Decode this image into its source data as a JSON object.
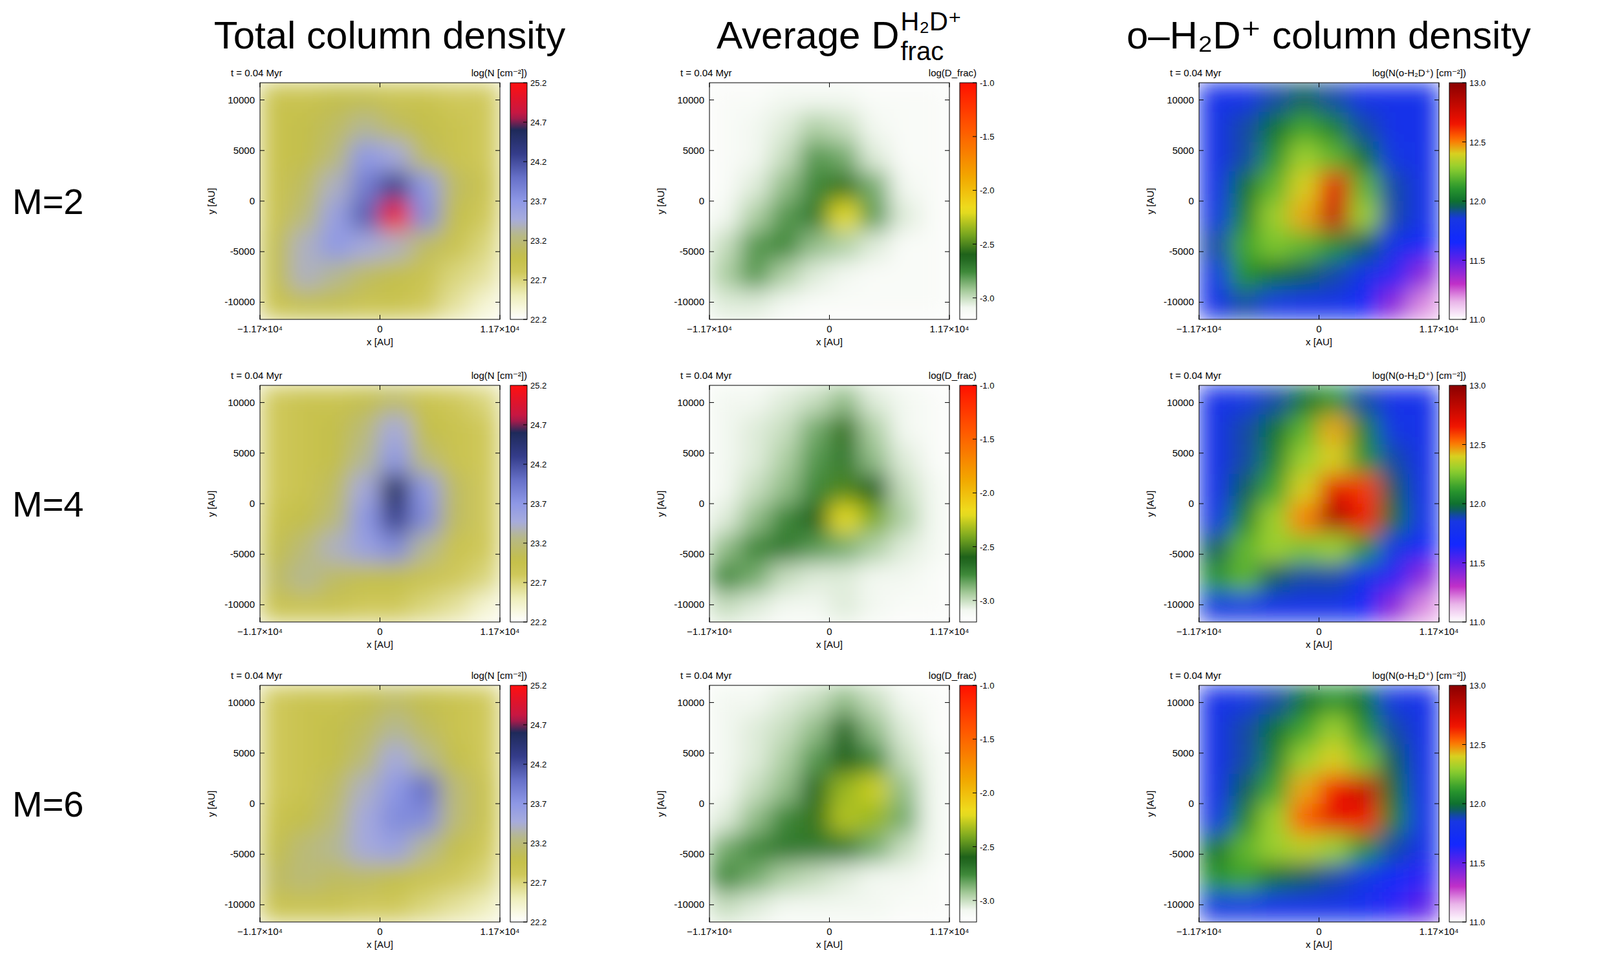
{
  "column_titles": [
    "Total column density",
    {
      "text": "Average D",
      "sup": "H₂D⁺",
      "sub": "frac"
    },
    "o–H₂D⁺ column density"
  ],
  "row_labels": [
    "M=2",
    "M=4",
    "M=6"
  ],
  "chart_data": [
    {
      "type": "heatmap",
      "title": "t = 0.04 Myr",
      "colorbar_label": "log(N [cm⁻²])",
      "xlabel": "x [AU]",
      "ylabel": "y [AU]",
      "xlim": [
        -11700,
        11700
      ],
      "ylim": [
        -11700,
        11700
      ],
      "xticks": [
        {
          "value": -11700,
          "label": "−1.17×10⁴"
        },
        0,
        {
          "value": 11700,
          "label": "1.17×10⁴"
        }
      ],
      "yticks": [
        -10000,
        -5000,
        0,
        5000,
        10000
      ],
      "zlim": [
        22.2,
        25.2
      ],
      "zticks": [
        22.2,
        22.7,
        23.2,
        23.7,
        24.2,
        24.7,
        25.2
      ],
      "z": [
        [
          22.9,
          22.9,
          23.0,
          23.0,
          22.9,
          22.9,
          22.8,
          22.8
        ],
        [
          22.9,
          23.0,
          23.1,
          23.3,
          23.1,
          23.0,
          22.9,
          22.8
        ],
        [
          22.9,
          23.0,
          23.2,
          23.7,
          23.5,
          23.1,
          22.9,
          22.8
        ],
        [
          22.9,
          23.1,
          23.4,
          23.9,
          24.3,
          23.7,
          23.1,
          22.9
        ],
        [
          22.9,
          23.2,
          23.6,
          24.1,
          25.1,
          23.8,
          23.0,
          22.8
        ],
        [
          23.0,
          23.4,
          23.7,
          23.5,
          23.4,
          23.1,
          22.9,
          22.7
        ],
        [
          23.0,
          23.4,
          23.3,
          23.1,
          23.0,
          22.9,
          22.7,
          22.6
        ],
        [
          22.9,
          23.0,
          23.0,
          22.9,
          22.9,
          22.8,
          22.6,
          22.4
        ]
      ]
    },
    {
      "type": "heatmap",
      "title": "t = 0.04 Myr",
      "colorbar_label": "log(D_frac)",
      "xlabel": "x [AU]",
      "ylabel": "y [AU]",
      "xlim": [
        -11700,
        11700
      ],
      "ylim": [
        -11700,
        11700
      ],
      "xticks": [
        {
          "value": -11700,
          "label": "−1.17×10⁴"
        },
        0,
        {
          "value": 11700,
          "label": "1.17×10⁴"
        }
      ],
      "yticks": [
        -10000,
        -5000,
        0,
        5000,
        10000
      ],
      "zlim": [
        -3.2,
        -1.0
      ],
      "zticks": [
        {
          "value": -3,
          "label": "-3.0"
        },
        -2.5,
        {
          "value": -2,
          "label": "-2.0"
        },
        -1.5,
        {
          "value": -1,
          "label": "-1.0"
        }
      ],
      "z": [
        [
          -3.15,
          -3.15,
          -3.1,
          -3.1,
          -3.1,
          -3.15,
          -3.15,
          -3.15
        ],
        [
          -3.15,
          -3.1,
          -3.05,
          -2.95,
          -3.0,
          -3.1,
          -3.15,
          -3.15
        ],
        [
          -3.15,
          -3.1,
          -3.0,
          -2.8,
          -2.85,
          -3.05,
          -3.15,
          -3.15
        ],
        [
          -3.15,
          -3.05,
          -2.9,
          -2.75,
          -2.55,
          -2.85,
          -3.1,
          -3.15
        ],
        [
          -3.1,
          -2.95,
          -2.8,
          -2.7,
          -2.2,
          -2.8,
          -3.05,
          -3.15
        ],
        [
          -3.0,
          -2.8,
          -2.75,
          -2.9,
          -2.95,
          -3.05,
          -3.15,
          -3.15
        ],
        [
          -2.95,
          -2.8,
          -2.95,
          -3.05,
          -3.1,
          -3.15,
          -3.15,
          -3.15
        ],
        [
          -3.05,
          -3.05,
          -3.1,
          -3.15,
          -3.15,
          -3.15,
          -3.15,
          -3.15
        ]
      ]
    },
    {
      "type": "heatmap",
      "title": "t = 0.04 Myr",
      "colorbar_label": "log(N(o-H₂D⁺) [cm⁻²])",
      "xlabel": "x [AU]",
      "ylabel": "y [AU]",
      "xlim": [
        -11700,
        11700
      ],
      "ylim": [
        -11700,
        11700
      ],
      "xticks": [
        {
          "value": -11700,
          "label": "−1.17×10⁴"
        },
        0,
        {
          "value": 11700,
          "label": "1.17×10⁴"
        }
      ],
      "yticks": [
        -10000,
        -5000,
        0,
        5000,
        10000
      ],
      "zlim": [
        11,
        13
      ],
      "zticks": [
        {
          "value": 11,
          "label": "11.0"
        },
        11.5,
        {
          "value": 12,
          "label": "12.0"
        },
        12.5,
        {
          "value": 13,
          "label": "13.0"
        }
      ],
      "z": [
        [
          11.8,
          11.8,
          11.9,
          11.95,
          11.9,
          11.8,
          11.8,
          11.8
        ],
        [
          11.8,
          11.9,
          12.0,
          12.15,
          12.05,
          11.9,
          11.8,
          11.8
        ],
        [
          11.8,
          11.9,
          12.1,
          12.3,
          12.2,
          12.0,
          11.85,
          11.8
        ],
        [
          11.8,
          12.0,
          12.2,
          12.4,
          12.7,
          12.2,
          11.9,
          11.8
        ],
        [
          11.85,
          12.05,
          12.3,
          12.45,
          12.8,
          12.3,
          11.9,
          11.8
        ],
        [
          11.9,
          12.15,
          12.25,
          12.2,
          12.1,
          11.95,
          11.8,
          11.7
        ],
        [
          11.85,
          12.1,
          12.0,
          11.95,
          11.9,
          11.8,
          11.6,
          11.4
        ],
        [
          11.8,
          11.9,
          11.85,
          11.8,
          11.8,
          11.7,
          11.4,
          11.2
        ]
      ]
    },
    {
      "type": "heatmap",
      "title": "t = 0.04 Myr",
      "colorbar_label": "log(N [cm⁻²])",
      "xlabel": "x [AU]",
      "ylabel": "y [AU]",
      "xlim": [
        -11700,
        11700
      ],
      "ylim": [
        -11700,
        11700
      ],
      "xticks": [
        {
          "value": -11700,
          "label": "−1.17×10⁴"
        },
        0,
        {
          "value": 11700,
          "label": "1.17×10⁴"
        }
      ],
      "yticks": [
        -10000,
        -5000,
        0,
        5000,
        10000
      ],
      "zlim": [
        22.2,
        25.2
      ],
      "zticks": [
        22.2,
        22.7,
        23.2,
        23.7,
        24.2,
        24.7,
        25.2
      ],
      "z": [
        [
          22.8,
          22.9,
          22.9,
          23.0,
          23.1,
          22.9,
          22.8,
          22.7
        ],
        [
          22.8,
          22.9,
          23.0,
          23.2,
          23.5,
          23.0,
          22.9,
          22.8
        ],
        [
          22.8,
          22.9,
          23.0,
          23.3,
          23.7,
          23.2,
          22.9,
          22.8
        ],
        [
          22.8,
          22.9,
          23.1,
          23.5,
          24.6,
          23.7,
          23.1,
          22.8
        ],
        [
          22.9,
          23.0,
          23.2,
          23.7,
          24.3,
          23.8,
          23.1,
          22.8
        ],
        [
          23.0,
          23.2,
          23.4,
          23.6,
          23.8,
          23.3,
          22.9,
          22.8
        ],
        [
          23.1,
          23.3,
          23.1,
          23.0,
          23.0,
          22.9,
          22.8,
          22.7
        ],
        [
          22.9,
          22.9,
          22.9,
          22.8,
          22.8,
          22.7,
          22.6,
          22.4
        ]
      ]
    },
    {
      "type": "heatmap",
      "title": "t = 0.04 Myr",
      "colorbar_label": "log(D_frac)",
      "xlabel": "x [AU]",
      "ylabel": "y [AU]",
      "xlim": [
        -11700,
        11700
      ],
      "ylim": [
        -11700,
        11700
      ],
      "xticks": [
        {
          "value": -11700,
          "label": "−1.17×10⁴"
        },
        0,
        {
          "value": 11700,
          "label": "1.17×10⁴"
        }
      ],
      "yticks": [
        -10000,
        -5000,
        0,
        5000,
        10000
      ],
      "zlim": [
        -3.2,
        -1.0
      ],
      "zticks": [
        {
          "value": -3,
          "label": "-3.0"
        },
        -2.5,
        {
          "value": -2,
          "label": "-2.0"
        },
        -1.5,
        {
          "value": -1,
          "label": "-1.0"
        }
      ],
      "z": [
        [
          -3.1,
          -3.1,
          -3.05,
          -3.0,
          -2.9,
          -3.05,
          -3.1,
          -3.15
        ],
        [
          -3.1,
          -3.05,
          -3.0,
          -2.85,
          -2.55,
          -2.95,
          -3.1,
          -3.15
        ],
        [
          -3.1,
          -3.05,
          -2.95,
          -2.8,
          -2.7,
          -2.9,
          -3.05,
          -3.15
        ],
        [
          -3.1,
          -3.0,
          -2.9,
          -2.75,
          -2.5,
          -2.6,
          -3.0,
          -3.1
        ],
        [
          -3.05,
          -2.9,
          -2.75,
          -2.6,
          -2.2,
          -2.4,
          -2.95,
          -3.1
        ],
        [
          -2.9,
          -2.75,
          -2.7,
          -2.8,
          -2.85,
          -2.95,
          -3.05,
          -3.1
        ],
        [
          -2.75,
          -2.85,
          -3.0,
          -3.05,
          -3.05,
          -3.1,
          -3.1,
          -3.15
        ],
        [
          -3.0,
          -3.05,
          -3.1,
          -3.1,
          -3.05,
          -3.1,
          -3.15,
          -3.15
        ]
      ]
    },
    {
      "type": "heatmap",
      "title": "t = 0.04 Myr",
      "colorbar_label": "log(N(o-H₂D⁺) [cm⁻²])",
      "xlabel": "x [AU]",
      "ylabel": "y [AU]",
      "xlim": [
        -11700,
        11700
      ],
      "ylim": [
        -11700,
        11700
      ],
      "xticks": [
        {
          "value": -11700,
          "label": "−1.17×10⁴"
        },
        0,
        {
          "value": 11700,
          "label": "1.17×10⁴"
        }
      ],
      "yticks": [
        -10000,
        -5000,
        0,
        5000,
        10000
      ],
      "zlim": [
        11,
        13
      ],
      "zticks": [
        {
          "value": 11,
          "label": "11.0"
        },
        11.5,
        {
          "value": 12,
          "label": "12.0"
        },
        12.5,
        {
          "value": 13,
          "label": "13.0"
        }
      ],
      "z": [
        [
          11.8,
          11.85,
          11.9,
          12.0,
          12.1,
          11.9,
          11.8,
          11.8
        ],
        [
          11.8,
          11.9,
          12.0,
          12.2,
          12.45,
          12.05,
          11.85,
          11.8
        ],
        [
          11.8,
          11.9,
          12.05,
          12.3,
          12.4,
          12.1,
          11.9,
          11.8
        ],
        [
          11.8,
          11.95,
          12.15,
          12.4,
          12.7,
          12.6,
          11.95,
          11.8
        ],
        [
          11.85,
          12.05,
          12.3,
          12.5,
          12.9,
          12.65,
          12.0,
          11.8
        ],
        [
          11.95,
          12.2,
          12.3,
          12.25,
          12.3,
          12.1,
          11.85,
          11.7
        ],
        [
          12.1,
          12.2,
          11.95,
          11.9,
          11.9,
          11.8,
          11.6,
          11.4
        ],
        [
          11.85,
          11.85,
          11.8,
          11.8,
          11.8,
          11.7,
          11.4,
          11.2
        ]
      ]
    },
    {
      "type": "heatmap",
      "title": "t = 0.04 Myr",
      "colorbar_label": "log(N [cm⁻²])",
      "xlabel": "x [AU]",
      "ylabel": "y [AU]",
      "xlim": [
        -11700,
        11700
      ],
      "ylim": [
        -11700,
        11700
      ],
      "xticks": [
        {
          "value": -11700,
          "label": "−1.17×10⁴"
        },
        0,
        {
          "value": 11700,
          "label": "1.17×10⁴"
        }
      ],
      "yticks": [
        -10000,
        -5000,
        0,
        5000,
        10000
      ],
      "zlim": [
        22.2,
        25.2
      ],
      "zticks": [
        22.2,
        22.7,
        23.2,
        23.7,
        24.2,
        24.7,
        25.2
      ],
      "z": [
        [
          22.8,
          22.9,
          22.9,
          23.0,
          23.1,
          23.0,
          22.9,
          22.8
        ],
        [
          22.8,
          22.9,
          23.0,
          23.1,
          23.3,
          23.1,
          22.9,
          22.8
        ],
        [
          22.8,
          22.9,
          23.0,
          23.2,
          23.5,
          23.3,
          23.0,
          22.8
        ],
        [
          22.8,
          22.9,
          23.1,
          23.4,
          23.7,
          24.0,
          23.2,
          22.9
        ],
        [
          22.9,
          23.0,
          23.2,
          23.5,
          23.8,
          23.8,
          23.2,
          22.9
        ],
        [
          23.0,
          23.2,
          23.3,
          23.5,
          23.6,
          23.3,
          23.0,
          22.8
        ],
        [
          23.1,
          23.2,
          23.1,
          23.1,
          23.0,
          22.9,
          22.8,
          22.7
        ],
        [
          22.9,
          22.9,
          22.9,
          22.8,
          22.8,
          22.7,
          22.6,
          22.5
        ]
      ]
    },
    {
      "type": "heatmap",
      "title": "t = 0.04 Myr",
      "colorbar_label": "log(D_frac)",
      "xlabel": "x [AU]",
      "ylabel": "y [AU]",
      "xlim": [
        -11700,
        11700
      ],
      "ylim": [
        -11700,
        11700
      ],
      "xticks": [
        {
          "value": -11700,
          "label": "−1.17×10⁴"
        },
        0,
        {
          "value": 11700,
          "label": "1.17×10⁴"
        }
      ],
      "yticks": [
        -10000,
        -5000,
        0,
        5000,
        10000
      ],
      "zlim": [
        -3.2,
        -1.0
      ],
      "zticks": [
        {
          "value": -3,
          "label": "-3.0"
        },
        -2.5,
        {
          "value": -2,
          "label": "-2.0"
        },
        -1.5,
        {
          "value": -1,
          "label": "-1.0"
        }
      ],
      "z": [
        [
          -3.1,
          -3.1,
          -3.05,
          -3.0,
          -2.9,
          -3.0,
          -3.1,
          -3.15
        ],
        [
          -3.1,
          -3.05,
          -3.0,
          -2.9,
          -2.65,
          -2.9,
          -3.05,
          -3.15
        ],
        [
          -3.1,
          -3.05,
          -2.95,
          -2.8,
          -2.6,
          -2.75,
          -3.0,
          -3.1
        ],
        [
          -3.1,
          -3.0,
          -2.9,
          -2.65,
          -2.35,
          -2.25,
          -2.9,
          -3.1
        ],
        [
          -3.05,
          -2.9,
          -2.75,
          -2.55,
          -2.3,
          -2.35,
          -2.85,
          -3.1
        ],
        [
          -2.85,
          -2.75,
          -2.7,
          -2.7,
          -2.7,
          -2.85,
          -3.0,
          -3.1
        ],
        [
          -2.75,
          -2.85,
          -2.95,
          -3.0,
          -3.05,
          -3.1,
          -3.1,
          -3.15
        ],
        [
          -3.0,
          -3.05,
          -3.1,
          -3.1,
          -3.1,
          -3.1,
          -3.15,
          -3.15
        ]
      ]
    },
    {
      "type": "heatmap",
      "title": "t = 0.04 Myr",
      "colorbar_label": "log(N(o-H₂D⁺) [cm⁻²])",
      "xlabel": "x [AU]",
      "ylabel": "y [AU]",
      "xlim": [
        -11700,
        11700
      ],
      "ylim": [
        -11700,
        11700
      ],
      "xticks": [
        {
          "value": -11700,
          "label": "−1.17×10⁴"
        },
        0,
        {
          "value": 11700,
          "label": "1.17×10⁴"
        }
      ],
      "yticks": [
        -10000,
        -5000,
        0,
        5000,
        10000
      ],
      "zlim": [
        11,
        13
      ],
      "zticks": [
        {
          "value": 11,
          "label": "11.0"
        },
        11.5,
        {
          "value": 12,
          "label": "12.0"
        },
        12.5,
        {
          "value": 13,
          "label": "13.0"
        }
      ],
      "z": [
        [
          11.8,
          11.85,
          11.9,
          12.0,
          12.1,
          12.0,
          11.85,
          11.8
        ],
        [
          11.8,
          11.9,
          12.0,
          12.15,
          12.3,
          12.1,
          11.9,
          11.8
        ],
        [
          11.8,
          11.9,
          12.05,
          12.3,
          12.4,
          12.25,
          11.95,
          11.8
        ],
        [
          11.8,
          11.95,
          12.15,
          12.45,
          12.65,
          12.8,
          12.0,
          11.8
        ],
        [
          11.85,
          12.05,
          12.3,
          12.55,
          12.7,
          12.65,
          12.05,
          11.8
        ],
        [
          12.0,
          12.2,
          12.3,
          12.35,
          12.3,
          12.1,
          11.9,
          11.8
        ],
        [
          12.1,
          12.15,
          12.0,
          11.95,
          11.9,
          11.85,
          11.7,
          11.6
        ],
        [
          11.85,
          11.85,
          11.8,
          11.8,
          11.8,
          11.75,
          11.6,
          11.5
        ]
      ]
    }
  ]
}
